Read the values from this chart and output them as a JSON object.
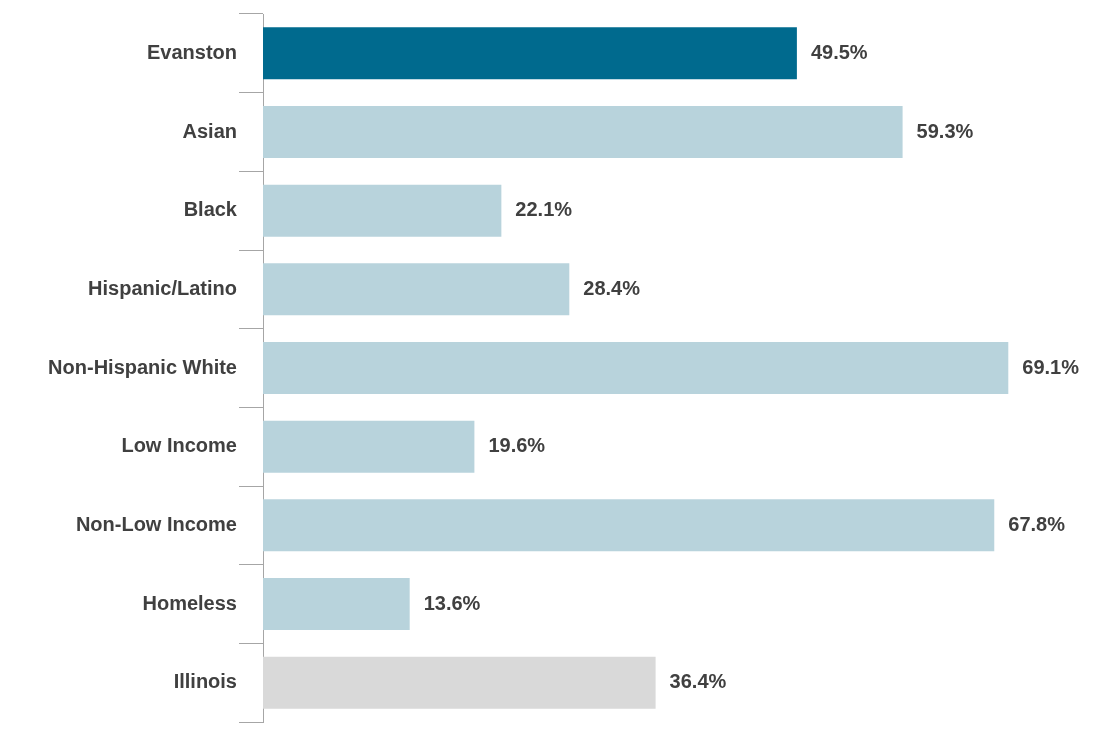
{
  "chart_data": {
    "type": "bar",
    "orientation": "horizontal",
    "categories": [
      "Evanston",
      "Asian",
      "Black",
      "Hispanic/Latino",
      "Non-Hispanic White",
      "Low Income",
      "Non-Low Income",
      "Homeless",
      "Illinois"
    ],
    "values": [
      49.5,
      59.3,
      22.1,
      28.4,
      69.1,
      19.6,
      67.8,
      13.6,
      36.4
    ],
    "colors": [
      "#006a8e",
      "#b8d3dc",
      "#b8d3dc",
      "#b8d3dc",
      "#b8d3dc",
      "#b8d3dc",
      "#b8d3dc",
      "#b8d3dc",
      "#d9d9d9"
    ],
    "value_labels": [
      "49.5%",
      "59.3%",
      "22.1%",
      "28.4%",
      "69.1%",
      "19.6%",
      "67.8%",
      "13.6%",
      "36.4%"
    ],
    "grid": false,
    "legend": false
  }
}
